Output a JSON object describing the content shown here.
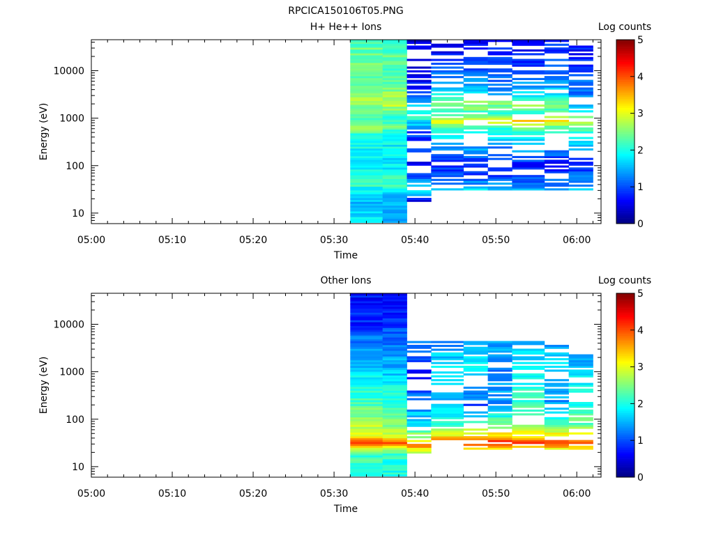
{
  "figure_title": "RPCICA150106T05.PNG",
  "chart_data": [
    {
      "type": "heatmap",
      "title": "H+ He++ Ions",
      "xlabel": "Time",
      "ylabel": "Energy (eV)",
      "yscale": "log",
      "ylim": [
        6,
        45000
      ],
      "xlim": [
        "05:00",
        "06:03"
      ],
      "x_ticks": [
        "05:00",
        "05:10",
        "05:20",
        "05:30",
        "05:40",
        "05:50",
        "06:00"
      ],
      "y_ticks": [
        10,
        100,
        1000,
        10000
      ],
      "y_tick_labels": [
        "10",
        "100",
        "1000",
        "10000"
      ],
      "colorbar": {
        "label": "Log counts",
        "min": 0,
        "max": 5,
        "ticks": [
          "0",
          "1",
          "2",
          "3",
          "4",
          "5"
        ],
        "colormap": "jet"
      },
      "time_bins": [
        "05:32",
        "05:35",
        "05:39",
        "05:42",
        "05:46",
        "05:49",
        "05:52",
        "05:56",
        "05:59",
        "06:02"
      ],
      "energy_bins_log10": [
        0.8,
        5.6
      ],
      "energy_bins_count": 96,
      "columns": [
        {
          "t0": "05:32",
          "t1": "05:36",
          "prof": [
            [
              0.8,
              2.0
            ],
            [
              1.15,
              1.5
            ],
            [
              1.5,
              1.8
            ],
            [
              1.6,
              2.2
            ],
            [
              2.0,
              1.9
            ],
            [
              2.6,
              1.9
            ],
            [
              2.85,
              2.7
            ],
            [
              3.0,
              2.1
            ],
            [
              3.3,
              2.7
            ],
            [
              3.8,
              2.3
            ],
            [
              4.3,
              2.4
            ],
            [
              4.65,
              2.3
            ]
          ],
          "dens": 1.0,
          "lo": 0.8,
          "hi": 4.65,
          "seed": 11
        },
        {
          "t0": "05:36",
          "t1": "05:39",
          "prof": [
            [
              0.8,
              1.6
            ],
            [
              1.15,
              1.4
            ],
            [
              1.5,
              1.7
            ],
            [
              1.6,
              2.3
            ],
            [
              2.0,
              1.8
            ],
            [
              2.6,
              1.9
            ],
            [
              2.85,
              2.4
            ],
            [
              3.0,
              1.9
            ],
            [
              3.3,
              2.9
            ],
            [
              3.8,
              2.2
            ],
            [
              4.3,
              2.3
            ],
            [
              4.65,
              2.2
            ]
          ],
          "dens": 1.0,
          "lo": 0.8,
          "hi": 4.65,
          "seed": 12
        },
        {
          "t0": "05:39",
          "t1": "05:42",
          "prof": [
            [
              1.2,
              0.3
            ],
            [
              1.5,
              1.8
            ],
            [
              1.7,
              1.2
            ],
            [
              2.0,
              0.6
            ],
            [
              2.7,
              1.0
            ],
            [
              3.0,
              2.0
            ],
            [
              3.3,
              1.6
            ],
            [
              3.7,
              0.6
            ],
            [
              4.6,
              0.4
            ]
          ],
          "dens": 0.5,
          "lo": 1.2,
          "hi": 4.65,
          "seed": 13
        },
        {
          "t0": "05:42",
          "t1": "05:46",
          "prof": [
            [
              1.4,
              2.0
            ],
            [
              1.6,
              1.2
            ],
            [
              2.0,
              0.8
            ],
            [
              2.8,
              2.2
            ],
            [
              2.95,
              3.1
            ],
            [
              3.1,
              2.0
            ],
            [
              3.3,
              2.5
            ],
            [
              3.6,
              1.5
            ],
            [
              4.4,
              0.6
            ]
          ],
          "dens": 0.55,
          "lo": 1.45,
          "hi": 4.65,
          "seed": 14
        },
        {
          "t0": "05:46",
          "t1": "05:49",
          "prof": [
            [
              1.4,
              2.1
            ],
            [
              1.6,
              1.3
            ],
            [
              2.0,
              0.7
            ],
            [
              2.8,
              2.3
            ],
            [
              2.95,
              3.2
            ],
            [
              3.1,
              2.2
            ],
            [
              3.3,
              2.6
            ],
            [
              3.6,
              1.5
            ],
            [
              4.4,
              0.7
            ]
          ],
          "dens": 0.55,
          "lo": 1.45,
          "hi": 4.65,
          "seed": 15
        },
        {
          "t0": "05:49",
          "t1": "05:52",
          "prof": [
            [
              1.4,
              1.9
            ],
            [
              1.6,
              1.3
            ],
            [
              2.0,
              0.6
            ],
            [
              2.8,
              2.1
            ],
            [
              2.95,
              3.2
            ],
            [
              3.1,
              2.0
            ],
            [
              3.3,
              2.5
            ],
            [
              3.6,
              1.3
            ],
            [
              4.4,
              0.8
            ]
          ],
          "dens": 0.6,
          "lo": 1.45,
          "hi": 4.65,
          "seed": 16
        },
        {
          "t0": "05:52",
          "t1": "05:56",
          "prof": [
            [
              1.4,
              1.8
            ],
            [
              1.6,
              1.2
            ],
            [
              2.0,
              0.7
            ],
            [
              2.8,
              2.3
            ],
            [
              2.95,
              3.5
            ],
            [
              3.1,
              2.1
            ],
            [
              3.3,
              2.6
            ],
            [
              3.6,
              1.4
            ],
            [
              4.4,
              0.7
            ]
          ],
          "dens": 0.55,
          "lo": 1.45,
          "hi": 4.65,
          "seed": 17
        },
        {
          "t0": "05:56",
          "t1": "05:59",
          "prof": [
            [
              1.4,
              1.9
            ],
            [
              1.6,
              1.2
            ],
            [
              2.0,
              0.6
            ],
            [
              2.8,
              2.2
            ],
            [
              2.95,
              3.2
            ],
            [
              3.1,
              2.2
            ],
            [
              3.3,
              2.5
            ],
            [
              3.6,
              1.5
            ],
            [
              4.4,
              0.9
            ]
          ],
          "dens": 0.55,
          "lo": 1.45,
          "hi": 4.65,
          "seed": 18
        },
        {
          "t0": "05:59",
          "t1": "06:02",
          "prof": [
            [
              1.4,
              2.0
            ],
            [
              1.6,
              1.4
            ],
            [
              2.0,
              0.8
            ],
            [
              2.8,
              2.2
            ],
            [
              2.95,
              3.2
            ],
            [
              3.1,
              2.1
            ],
            [
              3.3,
              1.3
            ],
            [
              3.6,
              1.2
            ],
            [
              4.4,
              0.7
            ]
          ],
          "dens": 0.55,
          "lo": 1.45,
          "hi": 4.5,
          "seed": 19
        }
      ]
    },
    {
      "type": "heatmap",
      "title": "Other Ions",
      "xlabel": "Time",
      "ylabel": "Energy (eV)",
      "yscale": "log",
      "ylim": [
        6,
        45000
      ],
      "xlim": [
        "05:00",
        "06:03"
      ],
      "x_ticks": [
        "05:00",
        "05:10",
        "05:20",
        "05:30",
        "05:40",
        "05:50",
        "06:00"
      ],
      "y_ticks": [
        10,
        100,
        1000,
        10000
      ],
      "y_tick_labels": [
        "10",
        "100",
        "1000",
        "10000"
      ],
      "colorbar": {
        "label": "Log counts",
        "min": 0,
        "max": 5,
        "ticks": [
          "0",
          "1",
          "2",
          "3",
          "4",
          "5"
        ],
        "colormap": "jet"
      },
      "columns": [
        {
          "t0": "05:32",
          "t1": "05:36",
          "prof": [
            [
              0.8,
              2.1
            ],
            [
              1.25,
              2.2
            ],
            [
              1.4,
              3.0
            ],
            [
              1.5,
              4.2
            ],
            [
              1.65,
              3.0
            ],
            [
              2.0,
              2.6
            ],
            [
              2.4,
              2.2
            ],
            [
              3.0,
              1.7
            ],
            [
              3.6,
              1.3
            ],
            [
              4.0,
              0.8
            ],
            [
              4.65,
              0.7
            ]
          ],
          "dens": 1.0,
          "lo": 0.8,
          "hi": 4.65,
          "seed": 21
        },
        {
          "t0": "05:36",
          "t1": "05:39",
          "prof": [
            [
              0.8,
              2.0
            ],
            [
              1.25,
              2.1
            ],
            [
              1.4,
              3.0
            ],
            [
              1.5,
              4.0
            ],
            [
              1.65,
              2.8
            ],
            [
              2.0,
              2.5
            ],
            [
              2.4,
              2.1
            ],
            [
              3.0,
              1.6
            ],
            [
              3.6,
              1.2
            ],
            [
              4.0,
              0.9
            ],
            [
              4.65,
              0.7
            ]
          ],
          "dens": 1.0,
          "lo": 0.8,
          "hi": 4.65,
          "seed": 22
        },
        {
          "t0": "05:39",
          "t1": "05:42",
          "prof": [
            [
              1.25,
              2.2
            ],
            [
              1.35,
              3.0
            ],
            [
              1.45,
              3.8
            ],
            [
              1.6,
              2.8
            ],
            [
              1.9,
              1.8
            ],
            [
              2.4,
              1.2
            ],
            [
              3.0,
              0.7
            ],
            [
              3.6,
              1.2
            ]
          ],
          "dens": 0.6,
          "lo": 1.25,
          "hi": 3.62,
          "seed": 23
        },
        {
          "t0": "05:42",
          "t1": "05:46",
          "prof": [
            [
              1.35,
              2.8
            ],
            [
              1.5,
              4.2
            ],
            [
              1.65,
              3.2
            ],
            [
              1.9,
              2.2
            ],
            [
              2.3,
              1.5
            ],
            [
              3.0,
              1.8
            ],
            [
              3.6,
              1.4
            ]
          ],
          "dens": 0.6,
          "lo": 1.35,
          "hi": 3.62,
          "seed": 24
        },
        {
          "t0": "05:46",
          "t1": "05:49",
          "prof": [
            [
              1.35,
              2.9
            ],
            [
              1.5,
              4.2
            ],
            [
              1.65,
              3.3
            ],
            [
              1.9,
              2.3
            ],
            [
              2.3,
              1.0
            ],
            [
              3.0,
              1.9
            ],
            [
              3.6,
              1.5
            ]
          ],
          "dens": 0.6,
          "lo": 1.35,
          "hi": 3.62,
          "seed": 25
        },
        {
          "t0": "05:49",
          "t1": "05:52",
          "prof": [
            [
              1.1,
              0.3
            ],
            [
              1.2,
              0.3
            ],
            [
              1.35,
              2.9
            ],
            [
              1.5,
              4.3
            ],
            [
              1.65,
              3.4
            ],
            [
              1.9,
              2.4
            ],
            [
              2.3,
              1.4
            ],
            [
              3.0,
              1.3
            ],
            [
              3.6,
              1.4
            ]
          ],
          "dens": 0.6,
          "lo": 1.35,
          "hi": 3.62,
          "seed": 26
        },
        {
          "t0": "05:52",
          "t1": "05:56",
          "prof": [
            [
              1.35,
              3.0
            ],
            [
              1.5,
              4.1
            ],
            [
              1.65,
              3.3
            ],
            [
              1.9,
              2.6
            ],
            [
              2.3,
              2.2
            ],
            [
              3.0,
              1.9
            ],
            [
              3.6,
              1.6
            ]
          ],
          "dens": 0.6,
          "lo": 1.35,
          "hi": 3.62,
          "seed": 27
        },
        {
          "t0": "05:56",
          "t1": "05:59",
          "prof": [
            [
              1.1,
              0.3
            ],
            [
              1.2,
              0.3
            ],
            [
              1.35,
              2.9
            ],
            [
              1.5,
              4.2
            ],
            [
              1.65,
              3.2
            ],
            [
              1.9,
              2.3
            ],
            [
              2.3,
              1.3
            ],
            [
              3.0,
              1.8
            ],
            [
              3.6,
              1.3
            ]
          ],
          "dens": 0.6,
          "lo": 1.35,
          "hi": 3.62,
          "seed": 28
        },
        {
          "t0": "05:59",
          "t1": "06:02",
          "prof": [
            [
              1.35,
              2.8
            ],
            [
              1.5,
              4.0
            ],
            [
              1.65,
              3.2
            ],
            [
              1.9,
              2.4
            ],
            [
              2.3,
              2.0
            ],
            [
              3.0,
              1.7
            ],
            [
              3.6,
              1.2
            ]
          ],
          "dens": 0.6,
          "lo": 1.35,
          "hi": 3.62,
          "seed": 29
        }
      ]
    }
  ]
}
